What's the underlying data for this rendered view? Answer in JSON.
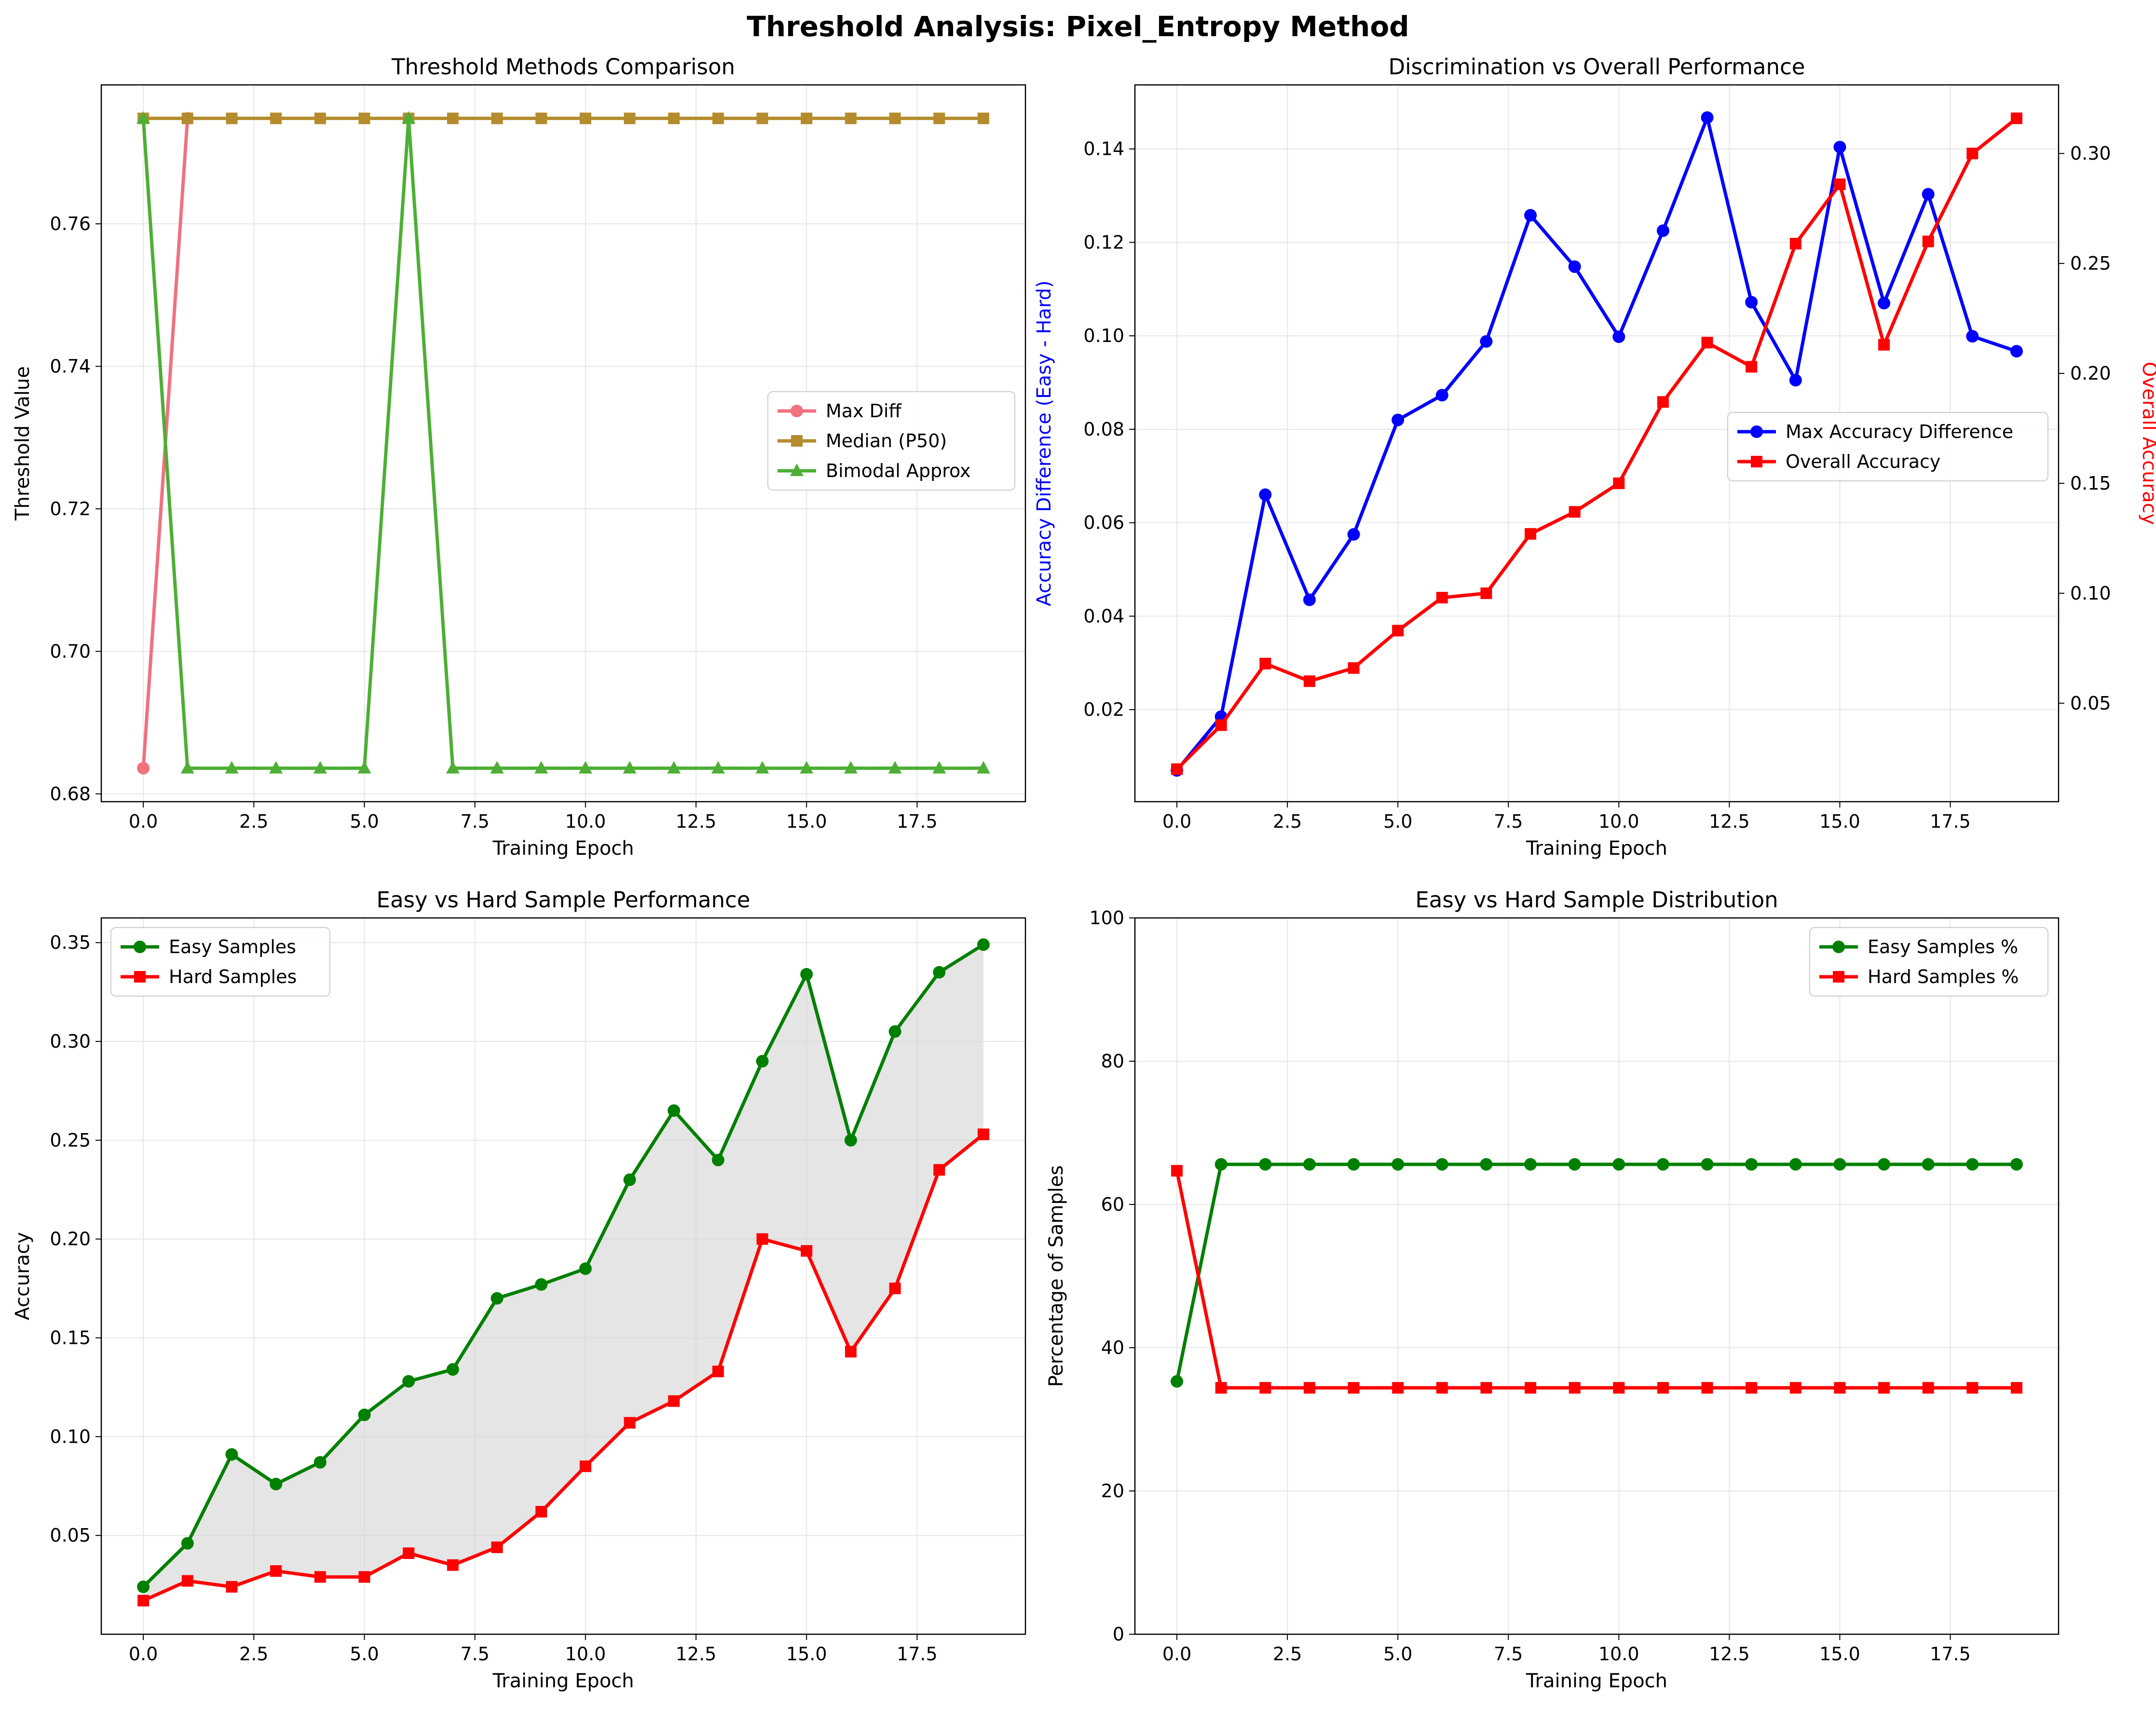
{
  "figure": {
    "title": "Threshold Analysis: Pixel_Entropy Method"
  },
  "colors": {
    "max_diff": "#f0717f",
    "median": "#b48c2d",
    "bimodal": "#4daf35",
    "blue": "#0000ff",
    "red": "#ff0000",
    "green": "#008000",
    "fill": "#d3d3d3",
    "grid": "#e6e6e6"
  },
  "chart_data": [
    {
      "type": "line",
      "title": "Threshold Methods Comparison",
      "xlabel": "Training Epoch",
      "ylabel": "Threshold Value",
      "xlim": [
        -0.95,
        19.95
      ],
      "ylim": [
        0.6789,
        0.7795
      ],
      "xticks": [
        "0.0",
        "2.5",
        "5.0",
        "7.5",
        "10.0",
        "12.5",
        "15.0",
        "17.5"
      ],
      "yticks": [
        "0.68",
        "0.70",
        "0.72",
        "0.74",
        "0.76"
      ],
      "legend_position": "center-right",
      "series": [
        {
          "name": "Max Diff",
          "marker": "circle",
          "x": [
            0,
            1
          ],
          "values": [
            0.6836,
            0.7748
          ]
        },
        {
          "name": "Median (P50)",
          "marker": "square",
          "x": [
            0,
            1,
            2,
            3,
            4,
            5,
            6,
            7,
            8,
            9,
            10,
            11,
            12,
            13,
            14,
            15,
            16,
            17,
            18,
            19
          ],
          "values": [
            0.7748,
            0.7748,
            0.7748,
            0.7748,
            0.7748,
            0.7748,
            0.7748,
            0.7748,
            0.7748,
            0.7748,
            0.7748,
            0.7748,
            0.7748,
            0.7748,
            0.7748,
            0.7748,
            0.7748,
            0.7748,
            0.7748,
            0.7748
          ]
        },
        {
          "name": "Bimodal Approx",
          "marker": "triangle",
          "x": [
            0,
            1,
            2,
            3,
            4,
            5,
            6,
            7,
            8,
            9,
            10,
            11,
            12,
            13,
            14,
            15,
            16,
            17,
            18,
            19
          ],
          "values": [
            0.7748,
            0.6836,
            0.6836,
            0.6836,
            0.6836,
            0.6836,
            0.7748,
            0.6836,
            0.6836,
            0.6836,
            0.6836,
            0.6836,
            0.6836,
            0.6836,
            0.6836,
            0.6836,
            0.6836,
            0.6836,
            0.6836,
            0.6836
          ]
        }
      ]
    },
    {
      "type": "line",
      "title": "Discrimination vs Overall Performance",
      "xlabel": "Training Epoch",
      "ylabel": "Accuracy Difference (Easy - Hard)",
      "ylabel_right": "Overall Accuracy",
      "xlim": [
        -0.95,
        19.95
      ],
      "ylim": [
        0.0003,
        0.1537
      ],
      "ylim_right": [
        0.0052,
        0.3312
      ],
      "xticks": [
        "0.0",
        "2.5",
        "5.0",
        "7.5",
        "10.0",
        "12.5",
        "15.0",
        "17.5"
      ],
      "yticks": [
        "0.02",
        "0.04",
        "0.06",
        "0.08",
        "0.10",
        "0.12",
        "0.14"
      ],
      "yticks_right": [
        "0.05",
        "0.10",
        "0.15",
        "0.20",
        "0.25",
        "0.30"
      ],
      "legend_position": "center-right",
      "series": [
        {
          "name": "Max Accuracy Difference",
          "axis": "left",
          "marker": "circle",
          "x": [
            0,
            1,
            2,
            3,
            4,
            5,
            6,
            7,
            8,
            9,
            10,
            11,
            12,
            13,
            14,
            15,
            16,
            17,
            18,
            19
          ],
          "values": [
            0.007,
            0.0185,
            0.066,
            0.0435,
            0.0575,
            0.082,
            0.0873,
            0.0988,
            0.1258,
            0.1148,
            0.0998,
            0.1225,
            0.1467,
            0.1072,
            0.0905,
            0.1404,
            0.107,
            0.1303,
            0.0999,
            0.0967
          ]
        },
        {
          "name": "Overall Accuracy",
          "axis": "right",
          "marker": "square",
          "x": [
            0,
            1,
            2,
            3,
            4,
            5,
            6,
            7,
            8,
            9,
            10,
            11,
            12,
            13,
            14,
            15,
            16,
            17,
            18,
            19
          ],
          "values": [
            0.02,
            0.04,
            0.068,
            0.06,
            0.066,
            0.083,
            0.098,
            0.1,
            0.127,
            0.137,
            0.15,
            0.187,
            0.214,
            0.203,
            0.259,
            0.286,
            0.213,
            0.26,
            0.3,
            0.316
          ]
        }
      ]
    },
    {
      "type": "area",
      "title": "Easy vs Hard Sample Performance",
      "xlabel": "Training Epoch",
      "ylabel": "Accuracy",
      "xlim": [
        -0.95,
        19.95
      ],
      "ylim": [
        0.0,
        0.3625
      ],
      "xticks": [
        "0.0",
        "2.5",
        "5.0",
        "7.5",
        "10.0",
        "12.5",
        "15.0",
        "17.5"
      ],
      "yticks": [
        "0.05",
        "0.10",
        "0.15",
        "0.20",
        "0.25",
        "0.30",
        "0.35"
      ],
      "legend_position": "top-left",
      "series": [
        {
          "name": "Easy Samples",
          "marker": "circle",
          "x": [
            0,
            1,
            2,
            3,
            4,
            5,
            6,
            7,
            8,
            9,
            10,
            11,
            12,
            13,
            14,
            15,
            16,
            17,
            18,
            19
          ],
          "values": [
            0.024,
            0.046,
            0.091,
            0.076,
            0.087,
            0.111,
            0.128,
            0.134,
            0.17,
            0.177,
            0.185,
            0.23,
            0.265,
            0.24,
            0.29,
            0.334,
            0.25,
            0.305,
            0.335,
            0.349
          ]
        },
        {
          "name": "Hard Samples",
          "marker": "square",
          "x": [
            0,
            1,
            2,
            3,
            4,
            5,
            6,
            7,
            8,
            9,
            10,
            11,
            12,
            13,
            14,
            15,
            16,
            17,
            18,
            19
          ],
          "values": [
            0.017,
            0.027,
            0.024,
            0.032,
            0.029,
            0.029,
            0.041,
            0.035,
            0.044,
            0.062,
            0.085,
            0.107,
            0.118,
            0.133,
            0.2,
            0.194,
            0.143,
            0.175,
            0.235,
            0.253
          ]
        }
      ]
    },
    {
      "type": "line",
      "title": "Easy vs Hard Sample Distribution",
      "xlabel": "Training Epoch",
      "ylabel": "Percentage of Samples",
      "xlim": [
        -0.95,
        19.95
      ],
      "ylim": [
        0,
        100
      ],
      "xticks": [
        "0.0",
        "2.5",
        "5.0",
        "7.5",
        "10.0",
        "12.5",
        "15.0",
        "17.5"
      ],
      "yticks": [
        "0",
        "20",
        "40",
        "60",
        "80",
        "100"
      ],
      "legend_position": "top-right",
      "series": [
        {
          "name": "Easy Samples %",
          "marker": "circle",
          "x": [
            0,
            1,
            2,
            3,
            4,
            5,
            6,
            7,
            8,
            9,
            10,
            11,
            12,
            13,
            14,
            15,
            16,
            17,
            18,
            19
          ],
          "values": [
            35.3,
            65.6,
            65.6,
            65.6,
            65.6,
            65.6,
            65.6,
            65.6,
            65.6,
            65.6,
            65.6,
            65.6,
            65.6,
            65.6,
            65.6,
            65.6,
            65.6,
            65.6,
            65.6,
            65.6
          ]
        },
        {
          "name": "Hard Samples %",
          "marker": "square",
          "x": [
            0,
            1,
            2,
            3,
            4,
            5,
            6,
            7,
            8,
            9,
            10,
            11,
            12,
            13,
            14,
            15,
            16,
            17,
            18,
            19
          ],
          "values": [
            64.7,
            34.4,
            34.4,
            34.4,
            34.4,
            34.4,
            34.4,
            34.4,
            34.4,
            34.4,
            34.4,
            34.4,
            34.4,
            34.4,
            34.4,
            34.4,
            34.4,
            34.4,
            34.4,
            34.4
          ]
        }
      ]
    }
  ]
}
